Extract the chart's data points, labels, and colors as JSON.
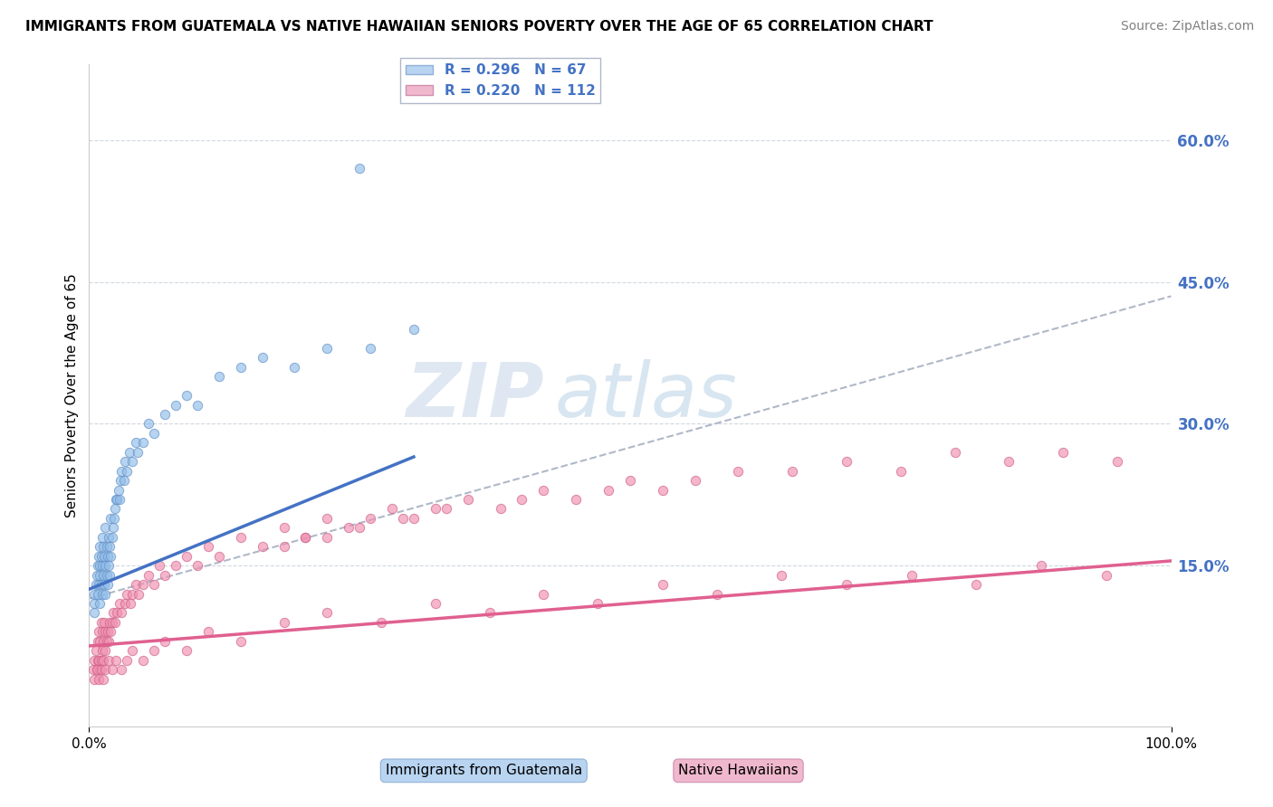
{
  "title": "IMMIGRANTS FROM GUATEMALA VS NATIVE HAWAIIAN SENIORS POVERTY OVER THE AGE OF 65 CORRELATION CHART",
  "source": "Source: ZipAtlas.com",
  "ylabel": "Seniors Poverty Over the Age of 65",
  "right_yticks": [
    0.0,
    0.15,
    0.3,
    0.45,
    0.6
  ],
  "right_yticklabels": [
    "",
    "15.0%",
    "30.0%",
    "45.0%",
    "60.0%"
  ],
  "xlim": [
    0.0,
    1.0
  ],
  "ylim": [
    -0.02,
    0.68
  ],
  "legend_entries": [
    {
      "label": "R = 0.296   N = 67",
      "color": "#b8d4f0"
    },
    {
      "label": "R = 0.220   N = 112",
      "color": "#f0b8cc"
    }
  ],
  "watermark": "ZIPatlas",
  "watermark_color": "#c0d4e8",
  "scatter_blue": {
    "color": "#90bce8",
    "edge_color": "#6090c8",
    "alpha": 0.65,
    "size": 55,
    "x": [
      0.005,
      0.005,
      0.005,
      0.006,
      0.007,
      0.008,
      0.008,
      0.009,
      0.009,
      0.01,
      0.01,
      0.01,
      0.01,
      0.011,
      0.011,
      0.012,
      0.012,
      0.012,
      0.013,
      0.013,
      0.014,
      0.014,
      0.015,
      0.015,
      0.015,
      0.016,
      0.016,
      0.017,
      0.017,
      0.018,
      0.018,
      0.019,
      0.019,
      0.02,
      0.02,
      0.021,
      0.022,
      0.023,
      0.024,
      0.025,
      0.026,
      0.027,
      0.028,
      0.029,
      0.03,
      0.032,
      0.033,
      0.035,
      0.037,
      0.04,
      0.043,
      0.045,
      0.05,
      0.055,
      0.06,
      0.07,
      0.08,
      0.09,
      0.1,
      0.12,
      0.14,
      0.16,
      0.19,
      0.22,
      0.26,
      0.3,
      0.25
    ],
    "y": [
      0.1,
      0.11,
      0.12,
      0.13,
      0.14,
      0.12,
      0.15,
      0.13,
      0.16,
      0.11,
      0.14,
      0.15,
      0.17,
      0.13,
      0.16,
      0.12,
      0.15,
      0.18,
      0.14,
      0.17,
      0.13,
      0.16,
      0.12,
      0.15,
      0.19,
      0.14,
      0.17,
      0.13,
      0.16,
      0.15,
      0.18,
      0.14,
      0.17,
      0.16,
      0.2,
      0.18,
      0.19,
      0.2,
      0.21,
      0.22,
      0.22,
      0.23,
      0.22,
      0.24,
      0.25,
      0.24,
      0.26,
      0.25,
      0.27,
      0.26,
      0.28,
      0.27,
      0.28,
      0.3,
      0.29,
      0.31,
      0.32,
      0.33,
      0.32,
      0.35,
      0.36,
      0.37,
      0.36,
      0.38,
      0.38,
      0.4,
      0.57
    ]
  },
  "scatter_pink": {
    "color": "#f090b0",
    "edge_color": "#d06088",
    "alpha": 0.65,
    "size": 55,
    "x": [
      0.004,
      0.005,
      0.006,
      0.007,
      0.008,
      0.008,
      0.009,
      0.009,
      0.01,
      0.01,
      0.011,
      0.011,
      0.012,
      0.012,
      0.013,
      0.013,
      0.014,
      0.015,
      0.015,
      0.016,
      0.017,
      0.018,
      0.019,
      0.02,
      0.021,
      0.022,
      0.024,
      0.026,
      0.028,
      0.03,
      0.033,
      0.035,
      0.038,
      0.04,
      0.043,
      0.046,
      0.05,
      0.055,
      0.06,
      0.065,
      0.07,
      0.08,
      0.09,
      0.1,
      0.11,
      0.12,
      0.14,
      0.16,
      0.18,
      0.2,
      0.22,
      0.25,
      0.28,
      0.3,
      0.33,
      0.35,
      0.38,
      0.4,
      0.42,
      0.45,
      0.48,
      0.5,
      0.53,
      0.56,
      0.6,
      0.65,
      0.7,
      0.75,
      0.8,
      0.85,
      0.9,
      0.95,
      0.005,
      0.007,
      0.009,
      0.011,
      0.013,
      0.015,
      0.018,
      0.021,
      0.025,
      0.03,
      0.035,
      0.04,
      0.05,
      0.06,
      0.07,
      0.09,
      0.11,
      0.14,
      0.18,
      0.22,
      0.27,
      0.32,
      0.37,
      0.42,
      0.47,
      0.53,
      0.58,
      0.64,
      0.7,
      0.76,
      0.82,
      0.88,
      0.94,
      0.18,
      0.2,
      0.22,
      0.24,
      0.26,
      0.29,
      0.32
    ],
    "y": [
      0.04,
      0.05,
      0.06,
      0.04,
      0.05,
      0.07,
      0.05,
      0.08,
      0.04,
      0.07,
      0.05,
      0.09,
      0.06,
      0.08,
      0.05,
      0.07,
      0.09,
      0.06,
      0.08,
      0.07,
      0.08,
      0.07,
      0.09,
      0.08,
      0.09,
      0.1,
      0.09,
      0.1,
      0.11,
      0.1,
      0.11,
      0.12,
      0.11,
      0.12,
      0.13,
      0.12,
      0.13,
      0.14,
      0.13,
      0.15,
      0.14,
      0.15,
      0.16,
      0.15,
      0.17,
      0.16,
      0.18,
      0.17,
      0.19,
      0.18,
      0.2,
      0.19,
      0.21,
      0.2,
      0.21,
      0.22,
      0.21,
      0.22,
      0.23,
      0.22,
      0.23,
      0.24,
      0.23,
      0.24,
      0.25,
      0.25,
      0.26,
      0.25,
      0.27,
      0.26,
      0.27,
      0.26,
      0.03,
      0.04,
      0.03,
      0.04,
      0.03,
      0.04,
      0.05,
      0.04,
      0.05,
      0.04,
      0.05,
      0.06,
      0.05,
      0.06,
      0.07,
      0.06,
      0.08,
      0.07,
      0.09,
      0.1,
      0.09,
      0.11,
      0.1,
      0.12,
      0.11,
      0.13,
      0.12,
      0.14,
      0.13,
      0.14,
      0.13,
      0.15,
      0.14,
      0.17,
      0.18,
      0.18,
      0.19,
      0.2,
      0.2,
      0.21
    ]
  },
  "trend_blue": {
    "color": "#4472c4",
    "linewidth": 2.5,
    "x_start": 0.0,
    "x_end": 0.3,
    "y_start": 0.125,
    "y_end": 0.265
  },
  "trend_pink": {
    "color": "#e06090",
    "linewidth": 2.5,
    "x_start": 0.0,
    "x_end": 1.0,
    "y_start": 0.065,
    "y_end": 0.155
  },
  "trend_gray": {
    "color": "#b0b8c8",
    "linewidth": 1.5,
    "linestyle": "--",
    "x_start": 0.0,
    "x_end": 1.0,
    "y_start": 0.115,
    "y_end": 0.435
  },
  "grid_color": "#d0d8e0",
  "grid_linestyle": "--",
  "background_color": "#ffffff",
  "title_fontsize": 11,
  "source_fontsize": 10,
  "tick_color_blue": "#4472c4",
  "legend_fontsize": 11,
  "bottom_label_blue": "Immigrants from Guatemala",
  "bottom_label_pink": "Native Hawaiians",
  "bottom_label_blue_color": "#b8d4f0",
  "bottom_label_pink_color": "#f0b8cc"
}
